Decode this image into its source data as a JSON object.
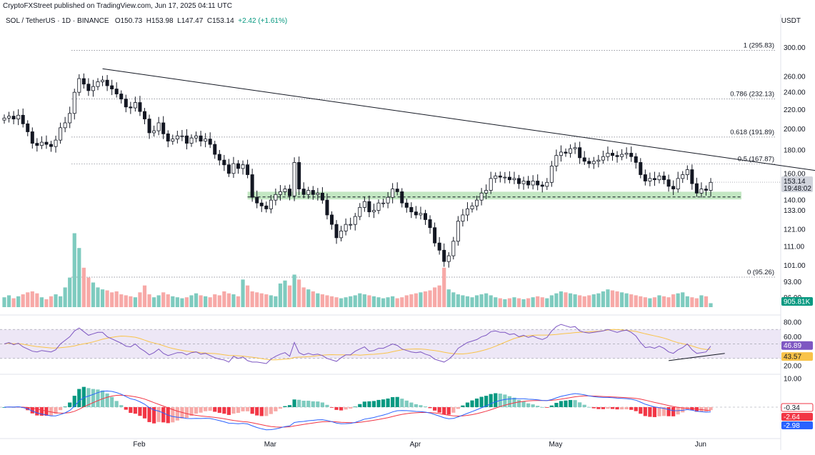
{
  "credit": "CryptoFXStreet published on TradingView.com, Jun 17, 2025 04:11 UTC",
  "header": {
    "symbol": "SOL / TetherUS · 1D · BINANCE",
    "open": "O150.73",
    "high": "H153.98",
    "low": "L147.47",
    "close": "C153.14",
    "change": "+2.42 (+1.61%)"
  },
  "currency": "USDT",
  "colors": {
    "up": "#089981",
    "down": "#f23645",
    "body_down": "#131722",
    "vol_up": "#7ecbbf",
    "vol_down": "#f7a9a7",
    "rsi_line": "#7e57c2",
    "rsi_ma": "#f9c349",
    "rsi_band": "#ede7f6",
    "macd": "#2962ff",
    "signal": "#f23645",
    "support_zone": "#b9e3b9"
  },
  "chart_data": [
    {
      "type": "candlestick",
      "title": "SOL / TetherUS · 1D · BINANCE",
      "y_axis_ticks": [
        "300.00",
        "260.00",
        "240.00",
        "220.00",
        "200.00",
        "180.00",
        "160.00",
        "140.00",
        "133.00",
        "121.00",
        "111.00",
        "101.00",
        "93.00",
        "86.00"
      ],
      "x_axis_labels": [
        "Feb",
        "Mar",
        "Apr",
        "May",
        "Jun"
      ],
      "y_scale": "log",
      "y_range": [
        82,
        330
      ],
      "last_price_label": "153.14",
      "countdown_label": "19:48:02",
      "fibonacci": [
        {
          "label": "1 (295.83)",
          "value": 295.83
        },
        {
          "label": "0.786 (232.13)",
          "value": 232.13
        },
        {
          "label": "0.618 (191.89)",
          "value": 191.89
        },
        {
          "label": "0.5 (167.87)",
          "value": 167.87
        },
        {
          "label": "0 (95.26)",
          "value": 95.26
        }
      ],
      "support_zone": [
        140.5,
        146.0
      ],
      "trendline": [
        {
          "day": 21,
          "price": 270
        },
        {
          "day": 174,
          "price": 162
        }
      ],
      "closes": [
        211,
        213,
        210,
        214,
        205,
        197,
        186,
        184,
        187,
        185,
        183,
        189,
        201,
        206,
        216,
        240,
        257,
        250,
        242,
        247,
        253,
        255,
        248,
        244,
        238,
        232,
        223,
        222,
        228,
        218,
        210,
        196,
        198,
        206,
        195,
        188,
        190,
        193,
        193,
        186,
        191,
        193,
        188,
        190,
        185,
        176,
        171,
        167,
        160,
        168,
        164,
        167,
        159,
        142,
        138,
        136,
        134,
        140,
        144,
        146,
        148,
        143,
        169,
        148,
        144,
        147,
        144,
        145,
        140,
        130,
        124,
        116,
        120,
        124,
        124,
        129,
        135,
        139,
        132,
        133,
        138,
        138,
        142,
        148,
        146,
        138,
        135,
        132,
        130,
        131,
        127,
        122,
        113,
        109,
        103,
        106,
        114,
        126,
        130,
        134,
        136,
        140,
        145,
        147,
        156,
        158,
        157,
        157,
        155,
        156,
        152,
        154,
        151,
        154,
        151,
        150,
        153,
        166,
        175,
        178,
        177,
        181,
        182,
        173,
        170,
        168,
        170,
        171,
        174,
        177,
        175,
        174,
        176,
        177,
        174,
        169,
        159,
        154,
        156,
        155,
        158,
        155,
        150,
        148,
        156,
        159,
        163,
        152,
        145,
        148,
        147,
        153
      ],
      "volume_label": "905.81K",
      "volumes": [
        10,
        12,
        9,
        11,
        13,
        15,
        16,
        14,
        10,
        8,
        11,
        13,
        11,
        20,
        30,
        75,
        60,
        40,
        30,
        25,
        20,
        18,
        17,
        15,
        16,
        13,
        12,
        11,
        10,
        15,
        22,
        13,
        10,
        12,
        15,
        13,
        11,
        10,
        9,
        10,
        12,
        14,
        12,
        11,
        10,
        13,
        12,
        16,
        14,
        13,
        11,
        28,
        22,
        16,
        15,
        14,
        13,
        12,
        11,
        24,
        27,
        22,
        33,
        28,
        20,
        18,
        16,
        14,
        13,
        12,
        11,
        10,
        9,
        10,
        11,
        12,
        14,
        13,
        12,
        11,
        10,
        9,
        10,
        11,
        9,
        10,
        12,
        13,
        14,
        15,
        16,
        17,
        20,
        22,
        40,
        18,
        15,
        13,
        12,
        11,
        10,
        12,
        13,
        14,
        12,
        10,
        9,
        8,
        9,
        10,
        9,
        8,
        9,
        10,
        11,
        10,
        9,
        12,
        14,
        16,
        15,
        14,
        13,
        12,
        11,
        12,
        13,
        14,
        16,
        18,
        17,
        16,
        15,
        14,
        13,
        12,
        11,
        10,
        9,
        10,
        12,
        11,
        10,
        13,
        14,
        15,
        11,
        10,
        9,
        12,
        11,
        4
      ],
      "rsi": {
        "levels": [
          80,
          60,
          20
        ],
        "labels": [
          "80.00",
          "60.00",
          "20.00"
        ],
        "rsi_value": "46.89",
        "ma_value": "43.57",
        "values": [
          50,
          52,
          49,
          51,
          46,
          43,
          40,
          39,
          41,
          40,
          39,
          42,
          50,
          55,
          60,
          68,
          72,
          67,
          62,
          64,
          66,
          66,
          60,
          57,
          54,
          51,
          47,
          46,
          50,
          44,
          40,
          35,
          38,
          43,
          37,
          34,
          36,
          38,
          38,
          35,
          38,
          39,
          36,
          37,
          34,
          31,
          29,
          28,
          25,
          33,
          30,
          32,
          27,
          25,
          25,
          24,
          23,
          29,
          33,
          36,
          38,
          33,
          52,
          38,
          35,
          37,
          35,
          36,
          34,
          30,
          28,
          26,
          31,
          35,
          35,
          40,
          43,
          46,
          40,
          41,
          44,
          44,
          47,
          50,
          48,
          43,
          41,
          39,
          38,
          39,
          36,
          34,
          29,
          27,
          25,
          29,
          35,
          44,
          48,
          52,
          54,
          56,
          60,
          62,
          67,
          68,
          66,
          66,
          63,
          64,
          60,
          62,
          59,
          61,
          58,
          56,
          59,
          68,
          74,
          77,
          75,
          73,
          74,
          68,
          66,
          65,
          66,
          67,
          68,
          70,
          68,
          66,
          68,
          69,
          66,
          61,
          52,
          45,
          46,
          44,
          47,
          44,
          39,
          37,
          42,
          45,
          50,
          42,
          37,
          38,
          39,
          46.89
        ]
      },
      "macd": {
        "levels": [
          10
        ],
        "labels": [
          "10.00"
        ],
        "macd_value": "-2.98",
        "signal_value": "-2.64",
        "hist_value": "-0.34"
      }
    }
  ]
}
